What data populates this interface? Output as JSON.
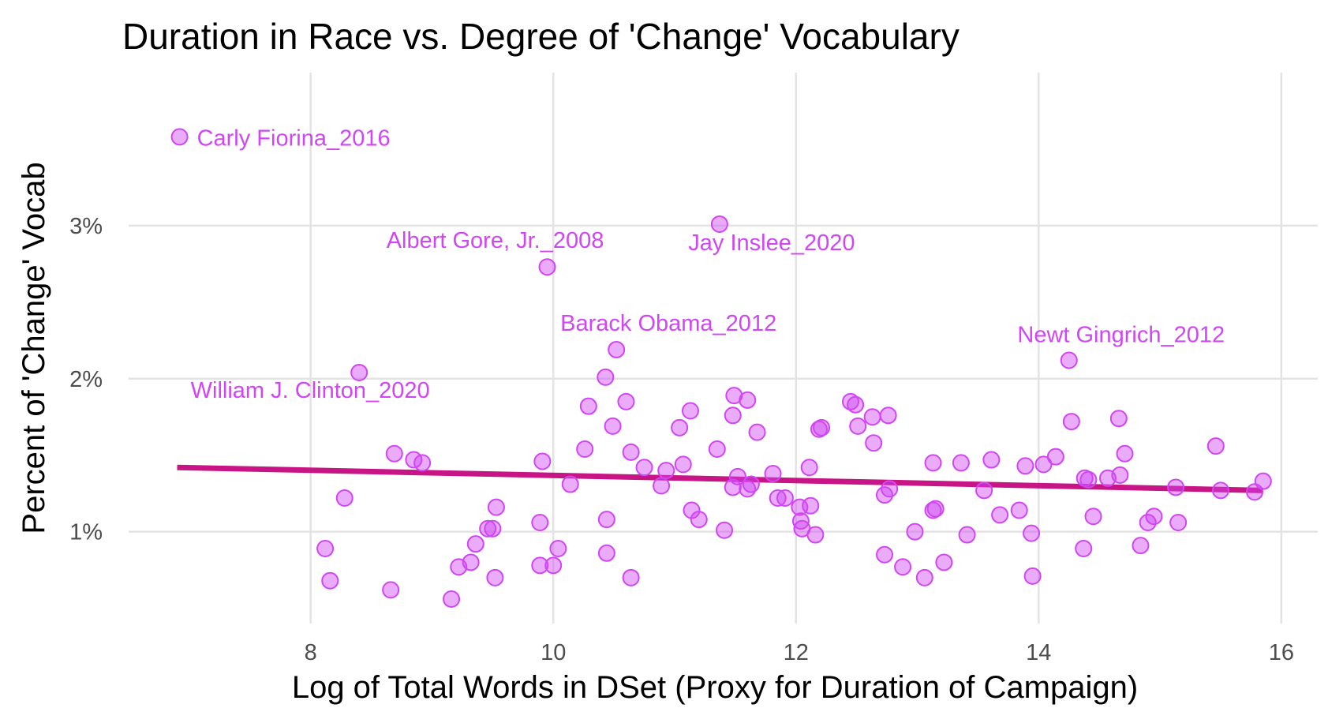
{
  "chart_data": {
    "type": "scatter",
    "title": "Duration in Race vs. Degree of 'Change' Vocabulary",
    "xlabel": "Log of Total Words in DSet (Proxy for Duration of Campaign)",
    "ylabel": "Percent of 'Change' Vocab",
    "xlim": [
      6.5,
      16.3
    ],
    "ylim": [
      0.4,
      4.0
    ],
    "x_ticks": [
      8,
      10,
      12,
      14,
      16
    ],
    "x_tick_labels": [
      "8",
      "10",
      "12",
      "14",
      "16"
    ],
    "y_ticks": [
      1,
      2,
      3
    ],
    "y_tick_labels": [
      "1%",
      "2%",
      "3%"
    ],
    "grid": true,
    "legend": "none",
    "colors": {
      "points": "#d046f5",
      "trend": "#c71585",
      "grid": "#e3e3e3"
    },
    "trend_line": {
      "x": [
        6.9,
        15.85
      ],
      "y": [
        1.42,
        1.27
      ]
    },
    "labeled_points": [
      {
        "label": "Carly Fiorina_2016",
        "x": 6.92,
        "y": 3.58
      },
      {
        "label": "Albert Gore, Jr._2008",
        "x": 9.95,
        "y": 2.73
      },
      {
        "label": "Jay Inslee_2020",
        "x": 11.37,
        "y": 3.01
      },
      {
        "label": "Barack Obama_2012",
        "x": 10.52,
        "y": 2.19
      },
      {
        "label": "Newt Gingrich_2012",
        "x": 14.25,
        "y": 2.12
      },
      {
        "label": "William J. Clinton_2020",
        "x": 8.4,
        "y": 2.04
      }
    ],
    "points": [
      [
        6.92,
        3.58
      ],
      [
        9.95,
        2.73
      ],
      [
        11.37,
        3.01
      ],
      [
        10.52,
        2.19
      ],
      [
        14.25,
        2.12
      ],
      [
        8.4,
        2.04
      ],
      [
        10.43,
        2.01
      ],
      [
        10.29,
        1.82
      ],
      [
        10.49,
        1.69
      ],
      [
        10.6,
        1.85
      ],
      [
        10.26,
        1.54
      ],
      [
        10.64,
        1.52
      ],
      [
        9.91,
        1.46
      ],
      [
        10.14,
        1.31
      ],
      [
        10.75,
        1.42
      ],
      [
        10.93,
        1.4
      ],
      [
        10.89,
        1.3
      ],
      [
        11.04,
        1.68
      ],
      [
        11.07,
        1.44
      ],
      [
        11.13,
        1.79
      ],
      [
        11.35,
        1.54
      ],
      [
        11.49,
        1.89
      ],
      [
        11.48,
        1.76
      ],
      [
        11.6,
        1.86
      ],
      [
        11.68,
        1.65
      ],
      [
        11.52,
        1.36
      ],
      [
        11.48,
        1.29
      ],
      [
        11.63,
        1.31
      ],
      [
        11.6,
        1.28
      ],
      [
        11.81,
        1.38
      ],
      [
        11.85,
        1.22
      ],
      [
        11.91,
        1.22
      ],
      [
        12.03,
        1.16
      ],
      [
        12.12,
        1.17
      ],
      [
        12.11,
        1.42
      ],
      [
        12.19,
        1.67
      ],
      [
        12.21,
        1.68
      ],
      [
        12.45,
        1.85
      ],
      [
        12.49,
        1.83
      ],
      [
        12.51,
        1.69
      ],
      [
        12.63,
        1.75
      ],
      [
        12.64,
        1.58
      ],
      [
        12.76,
        1.76
      ],
      [
        12.73,
        1.24
      ],
      [
        12.77,
        1.28
      ],
      [
        13.13,
        1.45
      ],
      [
        13.13,
        1.14
      ],
      [
        13.15,
        1.15
      ],
      [
        13.36,
        1.45
      ],
      [
        13.55,
        1.27
      ],
      [
        13.61,
        1.47
      ],
      [
        13.68,
        1.11
      ],
      [
        13.84,
        1.14
      ],
      [
        13.89,
        1.43
      ],
      [
        14.04,
        1.44
      ],
      [
        14.14,
        1.49
      ],
      [
        14.27,
        1.72
      ],
      [
        14.38,
        1.35
      ],
      [
        14.41,
        1.34
      ],
      [
        14.45,
        1.1
      ],
      [
        14.57,
        1.35
      ],
      [
        14.66,
        1.74
      ],
      [
        14.67,
        1.37
      ],
      [
        14.71,
        1.51
      ],
      [
        14.95,
        1.1
      ],
      [
        14.9,
        1.06
      ],
      [
        15.13,
        1.29
      ],
      [
        15.15,
        1.06
      ],
      [
        15.46,
        1.56
      ],
      [
        15.5,
        1.27
      ],
      [
        15.78,
        1.26
      ],
      [
        15.85,
        1.33
      ],
      [
        8.12,
        0.89
      ],
      [
        8.16,
        0.68
      ],
      [
        8.28,
        1.22
      ],
      [
        8.66,
        0.62
      ],
      [
        8.69,
        1.51
      ],
      [
        8.85,
        1.47
      ],
      [
        8.92,
        1.45
      ],
      [
        9.16,
        0.56
      ],
      [
        9.22,
        0.77
      ],
      [
        9.32,
        0.8
      ],
      [
        9.36,
        0.92
      ],
      [
        9.46,
        1.02
      ],
      [
        9.5,
        1.02
      ],
      [
        9.52,
        0.7
      ],
      [
        9.53,
        1.16
      ],
      [
        9.89,
        1.06
      ],
      [
        9.89,
        0.78
      ],
      [
        10.0,
        0.78
      ],
      [
        10.04,
        0.89
      ],
      [
        10.44,
        1.08
      ],
      [
        10.44,
        0.86
      ],
      [
        10.64,
        0.7
      ],
      [
        11.14,
        1.14
      ],
      [
        11.2,
        1.08
      ],
      [
        11.41,
        1.01
      ],
      [
        12.04,
        1.07
      ],
      [
        12.05,
        1.02
      ],
      [
        12.16,
        0.98
      ],
      [
        12.73,
        0.85
      ],
      [
        12.88,
        0.77
      ],
      [
        12.98,
        1.0
      ],
      [
        13.06,
        0.7
      ],
      [
        13.22,
        0.8
      ],
      [
        13.41,
        0.98
      ],
      [
        13.94,
        0.99
      ],
      [
        13.95,
        0.71
      ],
      [
        14.37,
        0.89
      ],
      [
        14.84,
        0.91
      ]
    ]
  }
}
